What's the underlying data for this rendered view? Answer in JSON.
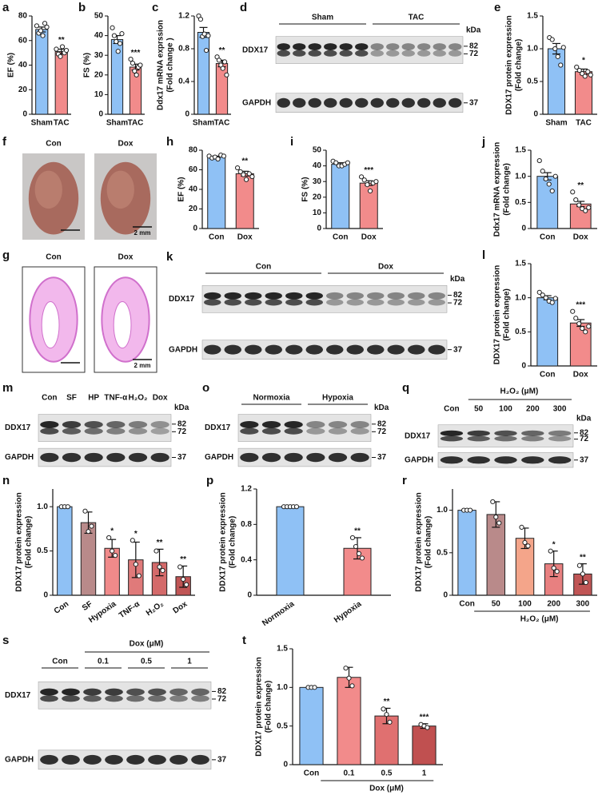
{
  "chart_data": [
    {
      "type": "bar",
      "label": "a",
      "ylabel": [
        "EF (%)"
      ],
      "categories": [
        "Sham",
        "TAC"
      ],
      "colors": [
        "#8fc1f5",
        "#f28b8b"
      ],
      "values": [
        69,
        51
      ],
      "errors": [
        2,
        2
      ],
      "points": [
        [
          72,
          66,
          68,
          64,
          74,
          71
        ],
        [
          53,
          49,
          47,
          55,
          50,
          52
        ]
      ],
      "significance": [
        null,
        "**"
      ],
      "ylim": [
        0,
        80
      ],
      "yticks": [
        0,
        20,
        40,
        60,
        80
      ]
    },
    {
      "type": "bar",
      "label": "b",
      "ylabel": [
        "FS (%)"
      ],
      "categories": [
        "Sham",
        "TAC"
      ],
      "colors": [
        "#8fc1f5",
        "#f28b8b"
      ],
      "values": [
        38,
        24
      ],
      "errors": [
        2,
        1.5
      ],
      "points": [
        [
          44,
          40,
          37,
          32,
          36,
          41
        ],
        [
          28,
          26,
          22,
          20,
          24,
          25
        ]
      ],
      "significance": [
        null,
        "***"
      ],
      "ylim": [
        0,
        50
      ],
      "yticks": [
        0,
        10,
        20,
        30,
        40,
        50
      ]
    },
    {
      "type": "bar",
      "label": "c",
      "ylabel": [
        "Ddx17 mRNA exprssion",
        "(Fold change )"
      ],
      "categories": [
        "Sham",
        "TAC"
      ],
      "colors": [
        "#8fc1f5",
        "#f28b8b"
      ],
      "values": [
        1.0,
        0.62
      ],
      "errors": [
        0.06,
        0.04
      ],
      "points": [
        [
          1.2,
          1.16,
          0.95,
          0.98,
          0.78,
          0.96
        ],
        [
          0.7,
          0.66,
          0.6,
          0.56,
          0.64,
          0.48
        ]
      ],
      "significance": [
        null,
        "**"
      ],
      "ylim": [
        0,
        1.2
      ],
      "yticks": [
        0,
        0.4,
        0.8,
        1.2
      ]
    },
    {
      "type": "bar",
      "label": "e",
      "ylabel": [
        "DDX17 protein expression",
        "(Fold change)"
      ],
      "categories": [
        "Sham",
        "TAC"
      ],
      "colors": [
        "#8fc1f5",
        "#f28b8b"
      ],
      "values": [
        1.0,
        0.65
      ],
      "errors": [
        0.08,
        0.04
      ],
      "points": [
        [
          1.17,
          1.14,
          1.0,
          0.88,
          0.75,
          1.02
        ],
        [
          0.72,
          0.67,
          0.62,
          0.58,
          0.65,
          0.6
        ]
      ],
      "significance": [
        null,
        "*"
      ],
      "ylim": [
        0,
        1.5
      ],
      "yticks": [
        0,
        0.5,
        {
          "value": 1,
          "label": "1.0"
        },
        1.5
      ]
    },
    {
      "type": "bar",
      "label": "h",
      "ylabel": [
        "EF (%)"
      ],
      "categories": [
        "Con",
        "Dox"
      ],
      "colors": [
        "#8fc1f5",
        "#f28b8b"
      ],
      "values": [
        73,
        56
      ],
      "errors": [
        1,
        2.5
      ],
      "points": [
        [
          74,
          72,
          73,
          71,
          75,
          74
        ],
        [
          62,
          58,
          55,
          50,
          56,
          53
        ]
      ],
      "significance": [
        null,
        "**"
      ],
      "ylim": [
        0,
        80
      ],
      "yticks": [
        0,
        20,
        40,
        60,
        80
      ]
    },
    {
      "type": "bar",
      "label": "i",
      "ylabel": [
        "FS (%)"
      ],
      "categories": [
        "Con",
        "Dox"
      ],
      "colors": [
        "#8fc1f5",
        "#f28b8b"
      ],
      "values": [
        41,
        29
      ],
      "errors": [
        1,
        1.5
      ],
      "points": [
        [
          43,
          42,
          40,
          40,
          41,
          42
        ],
        [
          33,
          31,
          28,
          24,
          29,
          30
        ]
      ],
      "significance": [
        null,
        "***"
      ],
      "ylim": [
        0,
        50
      ],
      "yticks": [
        0,
        10,
        20,
        30,
        40,
        50
      ]
    },
    {
      "type": "bar",
      "label": "j",
      "ylabel": [
        "Ddx17 mRNA expression",
        "(Fold change)"
      ],
      "categories": [
        "Con",
        "Dox"
      ],
      "colors": [
        "#8fc1f5",
        "#f28b8b"
      ],
      "values": [
        1.0,
        0.47
      ],
      "errors": [
        0.07,
        0.05
      ],
      "points": [
        [
          1.3,
          1.1,
          0.95,
          0.85,
          0.72,
          1.0
        ],
        [
          0.7,
          0.55,
          0.45,
          0.38,
          0.34,
          0.4
        ]
      ],
      "significance": [
        null,
        "**"
      ],
      "ylim": [
        0,
        1.5
      ],
      "yticks": [
        0,
        0.5,
        {
          "value": 1,
          "label": "1.0"
        },
        1.5
      ]
    },
    {
      "type": "bar",
      "label": "l",
      "ylabel": [
        "DDX17 protein expression",
        "(Fold change)"
      ],
      "categories": [
        "Con",
        "Dox"
      ],
      "colors": [
        "#8fc1f5",
        "#f28b8b"
      ],
      "values": [
        1.0,
        0.63
      ],
      "errors": [
        0.03,
        0.05
      ],
      "points": [
        [
          1.08,
          1.04,
          1.0,
          0.95,
          0.93,
          0.99
        ],
        [
          0.8,
          0.7,
          0.62,
          0.55,
          0.5,
          0.58
        ]
      ],
      "significance": [
        null,
        "***"
      ],
      "ylim": [
        0,
        1.5
      ],
      "yticks": [
        0,
        0.5,
        {
          "value": 1,
          "label": "1.0"
        },
        1.5
      ]
    },
    {
      "type": "bar",
      "label": "n",
      "ylabel": [
        "DDX17 protein expression",
        "(Fold change)"
      ],
      "categories": [
        "Con",
        "SF",
        "Hypoxia",
        "TNF-α",
        "H₂O₂",
        "Dox"
      ],
      "colors": [
        "#8fc1f5",
        "#b98a8a",
        "#f08a8a",
        "#e07a7a",
        "#d46a6a",
        "#c05555"
      ],
      "values": [
        1.0,
        0.82,
        0.53,
        0.4,
        0.37,
        0.21
      ],
      "errors": [
        0,
        0.12,
        0.1,
        0.2,
        0.15,
        0.12
      ],
      "points": [
        [
          1,
          1,
          1
        ],
        [
          0.95,
          0.72,
          0.78
        ],
        [
          0.65,
          0.5,
          0.45
        ],
        [
          0.62,
          0.35,
          0.22
        ],
        [
          0.5,
          0.32,
          0.28
        ],
        [
          0.32,
          0.18,
          0.12
        ]
      ],
      "significance": [
        null,
        null,
        "*",
        "*",
        "**",
        "**"
      ],
      "ylim": [
        0,
        1.2
      ],
      "yticks": [
        0,
        0.5,
        {
          "value": 1,
          "label": "1.0"
        }
      ]
    },
    {
      "type": "bar",
      "label": "p",
      "ylabel": [
        "DDX17 protein expression",
        "(Fold change)"
      ],
      "categories": [
        "Normoxia",
        "Hypoxia"
      ],
      "colors": [
        "#8fc1f5",
        "#f28b8b"
      ],
      "values": [
        1.0,
        0.53
      ],
      "errors": [
        0,
        0.12
      ],
      "points": [
        [
          1,
          1,
          1,
          1,
          1
        ],
        [
          0.65,
          0.55,
          0.47,
          0.42
        ]
      ],
      "significance": [
        null,
        "**"
      ],
      "ylim": [
        0,
        1.2
      ],
      "yticks": [
        0,
        0.4,
        0.8,
        1.2
      ]
    },
    {
      "type": "bar",
      "label": "r",
      "ylabel": [
        "DDX17 protein expression",
        "(Fold change)"
      ],
      "categories": [
        "Con",
        "50",
        "100",
        "200",
        "300"
      ],
      "xlabel": "H₂O₂ (μM)",
      "colors": [
        "#8fc1f5",
        "#b98a8a",
        "#f4a58a",
        "#e88080",
        "#c05555"
      ],
      "values": [
        1.0,
        0.95,
        0.67,
        0.37,
        0.25
      ],
      "errors": [
        0,
        0.15,
        0.12,
        0.15,
        0.12
      ],
      "points": [
        [
          1,
          1,
          1
        ],
        [
          1.1,
          0.92,
          0.85
        ],
        [
          0.8,
          0.62,
          0.58
        ],
        [
          0.52,
          0.32,
          0.28
        ],
        [
          0.35,
          0.25,
          0.15
        ]
      ],
      "significance": [
        null,
        null,
        null,
        "*",
        "**"
      ],
      "ylim": [
        0,
        1.25
      ],
      "yticks": [
        0,
        0.5,
        {
          "value": 1,
          "label": "1.0"
        }
      ]
    },
    {
      "type": "bar",
      "label": "t",
      "ylabel": [
        "DDX17 protein expression",
        "(Fold change)"
      ],
      "categories": [
        "Con",
        "0.1",
        "0.5",
        "1"
      ],
      "xlabel": "Dox (μM)",
      "colors": [
        "#8fc1f5",
        "#f28b8b",
        "#e07070",
        "#c05050"
      ],
      "values": [
        1.0,
        1.13,
        0.63,
        0.5
      ],
      "errors": [
        0,
        0.13,
        0.1,
        0.03
      ],
      "points": [
        [
          1,
          1,
          1
        ],
        [
          1.25,
          1.12,
          1.02
        ],
        [
          0.72,
          0.65,
          0.55
        ],
        [
          0.52,
          0.5,
          0.48
        ]
      ],
      "significance": [
        null,
        null,
        "**",
        "***"
      ],
      "ylim": [
        0,
        1.5
      ],
      "yticks": [
        0,
        0.5,
        {
          "value": 1,
          "label": "1.0"
        },
        1.5
      ]
    }
  ],
  "blots": [
    {
      "label": "d",
      "groups": [
        {
          "name": "Sham",
          "lanes": 6
        },
        {
          "name": "TAC",
          "lanes": 6
        }
      ],
      "rows": [
        {
          "name": "DDX17",
          "markers": [
            82,
            72
          ]
        },
        {
          "name": "GAPDH",
          "markers": [
            37
          ]
        }
      ],
      "unit": "kDa"
    },
    {
      "label": "k",
      "groups": [
        {
          "name": "Con",
          "lanes": 6
        },
        {
          "name": "Dox",
          "lanes": 6
        }
      ],
      "rows": [
        {
          "name": "DDX17",
          "markers": [
            82,
            72
          ]
        },
        {
          "name": "GAPDH",
          "markers": [
            37
          ]
        }
      ],
      "unit": "kDa"
    },
    {
      "label": "m",
      "groups": [
        {
          "name": "Con",
          "lanes": 1
        },
        {
          "name": "SF",
          "lanes": 1
        },
        {
          "name": "HP",
          "lanes": 1
        },
        {
          "name": "TNF-α",
          "lanes": 1
        },
        {
          "name": "H₂O₂",
          "lanes": 1
        },
        {
          "name": "Dox",
          "lanes": 1
        }
      ],
      "rows": [
        {
          "name": "DDX17",
          "markers": [
            82,
            72
          ]
        },
        {
          "name": "GAPDH",
          "markers": [
            37
          ]
        }
      ],
      "unit": "kDa"
    },
    {
      "label": "o",
      "groups": [
        {
          "name": "Normoxia",
          "lanes": 3
        },
        {
          "name": "Hypoxia",
          "lanes": 3
        }
      ],
      "rows": [
        {
          "name": "DDX17",
          "markers": [
            82,
            72
          ]
        },
        {
          "name": "GAPDH",
          "markers": [
            37
          ]
        }
      ],
      "unit": "kDa"
    },
    {
      "label": "q",
      "header": "H₂O₂ (μM)",
      "groups": [
        {
          "name": "Con",
          "lanes": 1
        },
        {
          "name": "50",
          "lanes": 1
        },
        {
          "name": "100",
          "lanes": 1
        },
        {
          "name": "200",
          "lanes": 1
        },
        {
          "name": "300",
          "lanes": 1
        }
      ],
      "rows": [
        {
          "name": "DDX17",
          "markers": [
            82,
            72
          ]
        },
        {
          "name": "GAPDH",
          "markers": [
            37
          ]
        }
      ],
      "unit": "kDa"
    },
    {
      "label": "s",
      "header": "Dox (μM)",
      "groups": [
        {
          "name": "Con",
          "lanes": 2
        },
        {
          "name": "0.1",
          "lanes": 2
        },
        {
          "name": "0.5",
          "lanes": 2
        },
        {
          "name": "1",
          "lanes": 2
        }
      ],
      "rows": [
        {
          "name": "DDX17",
          "markers": [
            82,
            72
          ]
        },
        {
          "name": "GAPDH",
          "markers": [
            37
          ]
        }
      ]
    }
  ],
  "images": [
    {
      "label": "f",
      "captions": [
        "Con",
        "Dox"
      ],
      "scale": "2 mm"
    },
    {
      "label": "g",
      "captions": [
        "Con",
        "Dox"
      ],
      "scale": "2 mm"
    }
  ]
}
